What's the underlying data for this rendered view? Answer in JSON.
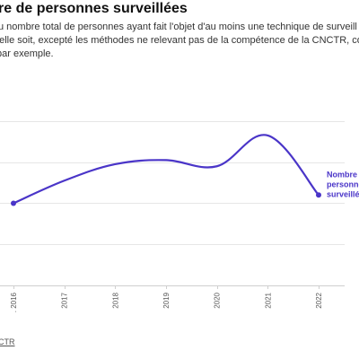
{
  "header": {
    "title": "re de personnes surveillées",
    "description_lines": [
      "u nombre total de personnes ayant fait l'objet d'au moins une technique de surveill",
      "'elle soit, excepté les méthodes ne relevant pas de la compétence de la CNCTR, com",
      "par exemple."
    ]
  },
  "source": {
    "label": "CTR"
  },
  "chart_data": {
    "type": "line",
    "categories": [
      "2016",
      "2017",
      "2018",
      "2019",
      "2020",
      "2021",
      "2022"
    ],
    "category_labels": [
      ". 2016",
      "2017",
      "2018",
      "2019",
      "2020",
      "2021",
      "2022"
    ],
    "series": [
      {
        "name": "Nombre personnes surveillé",
        "label_lines": [
          "Nombre",
          "personnes",
          "surveillé"
        ],
        "color": "#4a35c8",
        "values": [
          21000,
          22100,
          22900,
          23100,
          22800,
          24300,
          21400
        ]
      }
    ],
    "ylim": [
      17000,
      26000
    ],
    "gridlines": [
      17000,
      19000,
      21000,
      23000,
      25000
    ],
    "grid": true,
    "title": "",
    "xlabel": "",
    "ylabel": ""
  }
}
